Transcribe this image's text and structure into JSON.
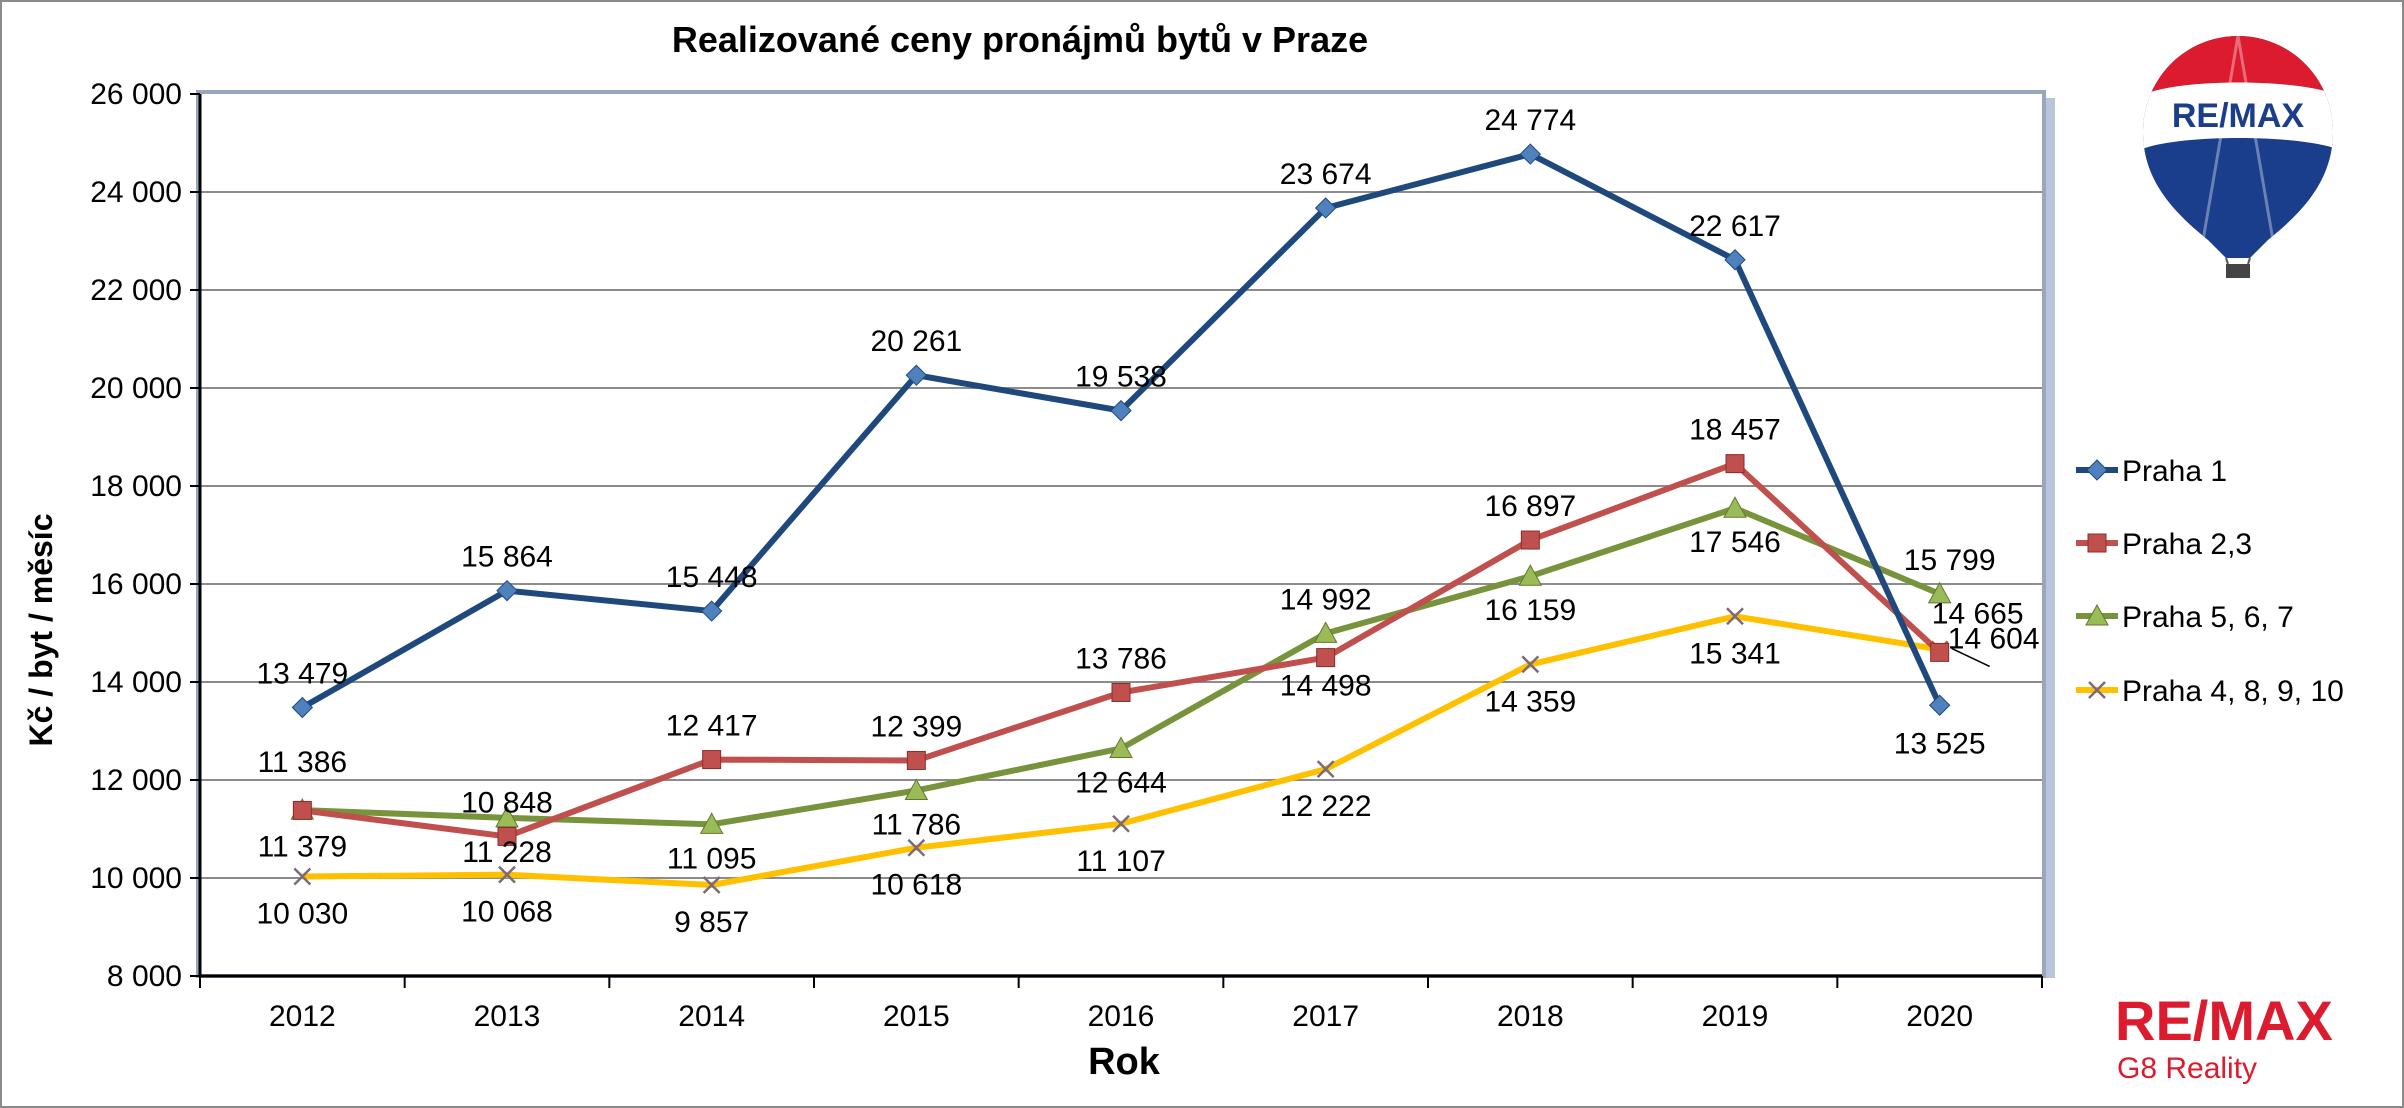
{
  "chart_data": {
    "type": "line",
    "title": "Realizované ceny pronájmů bytů v Praze",
    "xlabel": "Rok",
    "ylabel": "Kč / byt / měsíc",
    "categories": [
      "2012",
      "2013",
      "2014",
      "2015",
      "2016",
      "2017",
      "2018",
      "2019",
      "2020"
    ],
    "ylim": [
      8000,
      26000
    ],
    "yticks": [
      8000,
      10000,
      12000,
      14000,
      16000,
      18000,
      20000,
      22000,
      24000,
      26000
    ],
    "ytick_labels": [
      "8 000",
      "10 000",
      "12 000",
      "14 000",
      "16 000",
      "18 000",
      "20 000",
      "22 000",
      "24 000",
      "26 000"
    ],
    "grid": true,
    "legend_position": "right",
    "series": [
      {
        "name": "Praha 1",
        "color": "#1f497d",
        "marker": "diamond",
        "values": [
          13479,
          15864,
          15448,
          20261,
          19538,
          23674,
          24774,
          22617,
          13525
        ],
        "labels": [
          "13 479",
          "15 864",
          "15 448",
          "20 261",
          "19 538",
          "23 674",
          "24 774",
          "22 617",
          "13 525"
        ]
      },
      {
        "name": "Praha 2,3",
        "color": "#c0504d",
        "marker": "square",
        "values": [
          11379,
          10848,
          12417,
          12399,
          13786,
          14498,
          16897,
          18457,
          14604
        ],
        "labels": [
          "11 379",
          "10 848",
          "12 417",
          "12 399",
          "13 786",
          "14 498",
          "16 897",
          "18 457",
          "14 604"
        ]
      },
      {
        "name": "Praha 5, 6, 7",
        "color": "#77933c",
        "marker": "triangle",
        "values": [
          11386,
          11228,
          11095,
          11786,
          12644,
          14992,
          16159,
          17546,
          15799
        ],
        "labels": [
          "11 386",
          "11 228",
          "11 095",
          "11 786",
          "12 644",
          "14 992",
          "16 159",
          "17 546",
          "15 799"
        ]
      },
      {
        "name": "Praha 4, 8, 9, 10",
        "color": "#ffc000",
        "marker": "x",
        "values": [
          10030,
          10068,
          9857,
          10618,
          11107,
          12222,
          14359,
          15341,
          14665
        ],
        "labels": [
          "10 030",
          "10 068",
          "9 857",
          "10 618",
          "11 107",
          "12 222",
          "14 359",
          "15 341",
          "14 665"
        ]
      }
    ]
  },
  "branding": {
    "balloon_text": "RE/MAX",
    "logo_main": "RE/MAX",
    "logo_sub": "G8 Reality",
    "logo_color": "#dc1c2e"
  }
}
